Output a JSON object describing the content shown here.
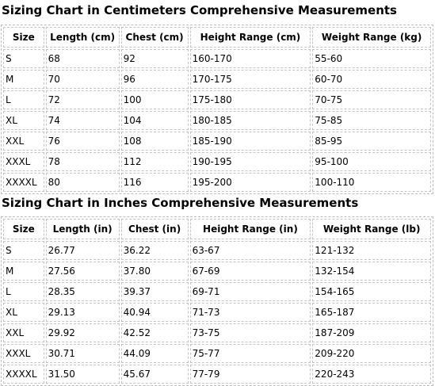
{
  "cm_table": {
    "title": "Sizing Chart in Centimeters Comprehensive Measurements",
    "headers": [
      "Size",
      "Length (cm)",
      "Chest (cm)",
      "Height Range (cm)",
      "Weight Range (kg)"
    ],
    "rows": [
      [
        "S",
        "68",
        "92",
        "160-170",
        "55-60"
      ],
      [
        "M",
        "70",
        "96",
        "170-175",
        "60-70"
      ],
      [
        "L",
        "72",
        "100",
        "175-180",
        "70-75"
      ],
      [
        "XL",
        "74",
        "104",
        "180-185",
        "75-85"
      ],
      [
        "XXL",
        "76",
        "108",
        "185-190",
        "85-95"
      ],
      [
        "XXXL",
        "78",
        "112",
        "190-195",
        "95-100"
      ],
      [
        "XXXXL",
        "80",
        "116",
        "195-200",
        "100-110"
      ]
    ]
  },
  "in_table": {
    "title": "Sizing Chart in Inches Comprehensive Measurements",
    "headers": [
      "Size",
      "Length (in)",
      "Chest (in)",
      "Height Range (in)",
      "Weight Range (lb)"
    ],
    "rows": [
      [
        "S",
        "26.77",
        "36.22",
        "63-67",
        "121-132"
      ],
      [
        "M",
        "27.56",
        "37.80",
        "67-69",
        "132-154"
      ],
      [
        "L",
        "28.35",
        "39.37",
        "69-71",
        "154-165"
      ],
      [
        "XL",
        "29.13",
        "40.94",
        "71-73",
        "165-187"
      ],
      [
        "XXL",
        "29.92",
        "42.52",
        "73-75",
        "187-209"
      ],
      [
        "XXXL",
        "30.71",
        "44.09",
        "75-77",
        "209-220"
      ],
      [
        "XXXXL",
        "31.50",
        "45.67",
        "77-79",
        "220-243"
      ]
    ]
  }
}
